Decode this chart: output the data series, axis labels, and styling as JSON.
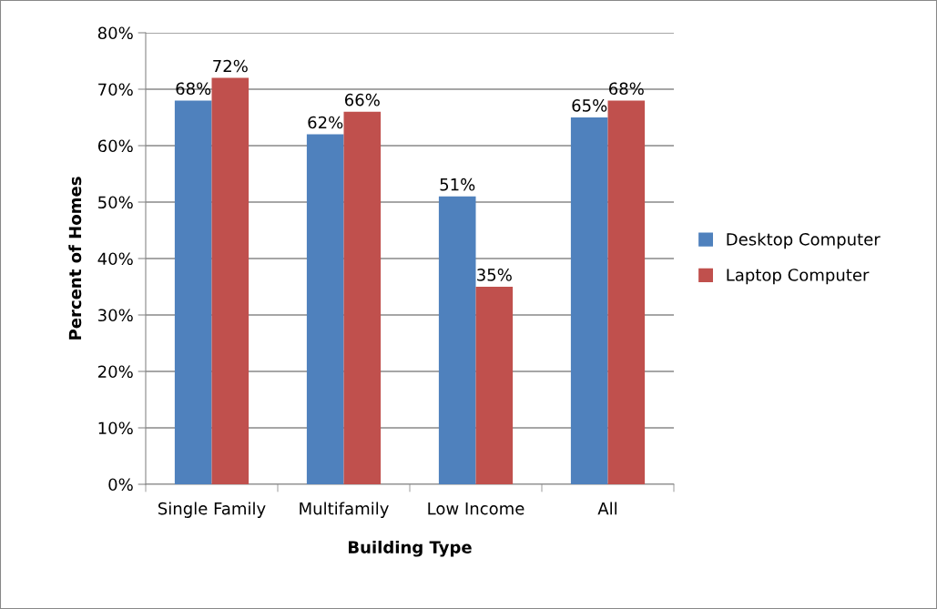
{
  "chart_data": {
    "type": "bar",
    "xlabel": "Building Type",
    "ylabel": "Percent of Homes",
    "categories": [
      "Single Family",
      "Multifamily",
      "Low Income",
      "All"
    ],
    "series": [
      {
        "name": "Desktop Computer",
        "color": "#4f81bd",
        "values": [
          68,
          62,
          51,
          65
        ],
        "value_labels": [
          "68%",
          "62%",
          "51%",
          "65%"
        ]
      },
      {
        "name": "Laptop Computer",
        "color": "#c0504d",
        "values": [
          72,
          66,
          35,
          68
        ],
        "value_labels": [
          "72%",
          "66%",
          "35%",
          "68%"
        ]
      }
    ],
    "ylim": [
      0,
      80
    ],
    "yticks": [
      {
        "value": 0,
        "label": "0%"
      },
      {
        "value": 10,
        "label": "10%"
      },
      {
        "value": 20,
        "label": "20%"
      },
      {
        "value": 30,
        "label": "30%"
      },
      {
        "value": 40,
        "label": "40%"
      },
      {
        "value": 50,
        "label": "50%"
      },
      {
        "value": 60,
        "label": "60%"
      },
      {
        "value": 70,
        "label": "70%"
      },
      {
        "value": 80,
        "label": "80%"
      }
    ],
    "grid": "y",
    "legend": "right"
  }
}
